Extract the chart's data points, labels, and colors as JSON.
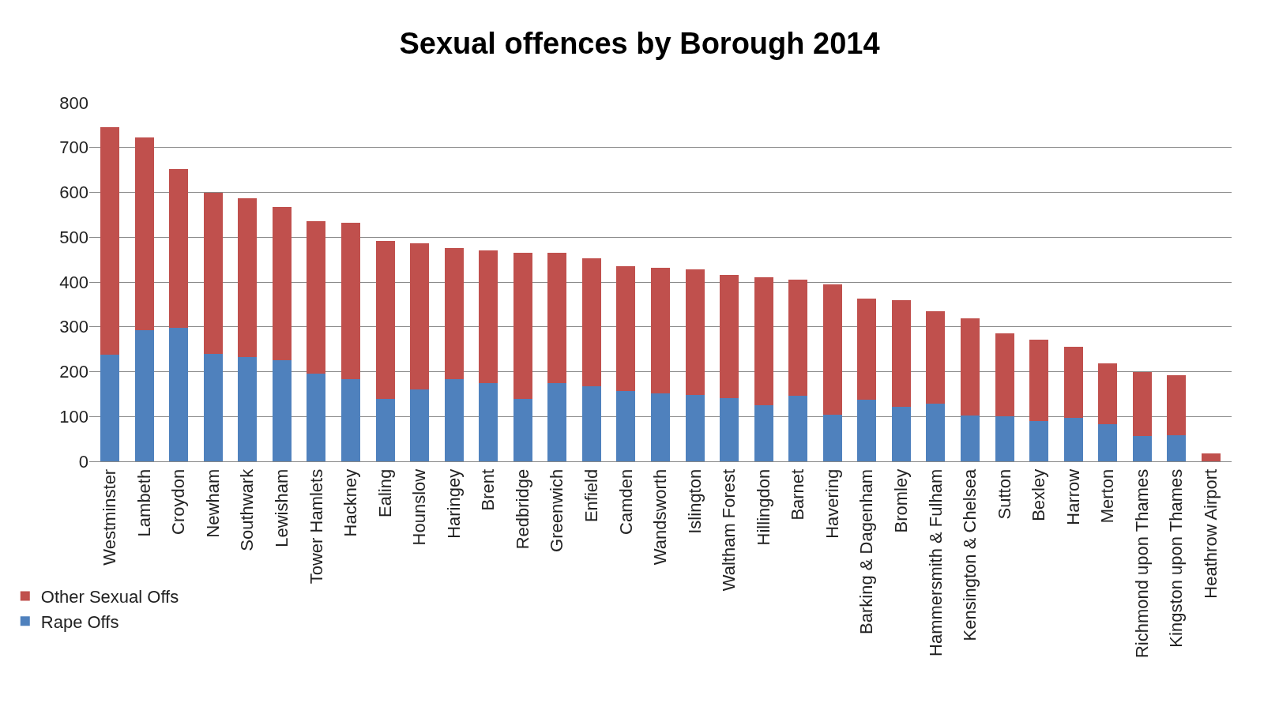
{
  "chart_data": {
    "type": "bar",
    "title": "Sexual offences by Borough 2014",
    "stacked": true,
    "categories": [
      "Westminster",
      "Lambeth",
      "Croydon",
      "Newham",
      "Southwark",
      "Lewisham",
      "Tower Hamlets",
      "Hackney",
      "Ealing",
      "Hounslow",
      "Haringey",
      "Brent",
      "Redbridge",
      "Greenwich",
      "Enfield",
      "Camden",
      "Wandsworth",
      "Islington",
      "Waltham Forest",
      "Hillingdon",
      "Barnet",
      "Havering",
      "Barking & Dagenham",
      "Bromley",
      "Hammersmith & Fulham",
      "Kensington & Chelsea",
      "Sutton",
      "Bexley",
      "Harrow",
      "Merton",
      "Richmond upon Thames",
      "Kingston upon Thames",
      "Heathrow Airport"
    ],
    "series": [
      {
        "name": "Rape Offs",
        "color": "#4f81bd",
        "values": [
          238,
          292,
          298,
          240,
          233,
          225,
          196,
          183,
          139,
          160,
          183,
          175,
          139,
          175,
          167,
          156,
          151,
          148,
          141,
          125,
          146,
          104,
          138,
          121,
          128,
          102,
          100,
          90,
          97,
          83,
          56,
          59,
          0
        ]
      },
      {
        "name": "Other Sexual Offs",
        "color": "#c0504d",
        "values": [
          507,
          430,
          354,
          360,
          353,
          343,
          340,
          350,
          353,
          327,
          293,
          296,
          327,
          291,
          285,
          280,
          280,
          281,
          275,
          286,
          260,
          290,
          225,
          239,
          207,
          217,
          185,
          182,
          159,
          136,
          144,
          133,
          17
        ]
      }
    ],
    "ylim": [
      0,
      800
    ],
    "yticks": [
      0,
      100,
      200,
      300,
      400,
      500,
      600,
      700,
      800
    ],
    "grid": "y",
    "legend": "bottom left"
  }
}
